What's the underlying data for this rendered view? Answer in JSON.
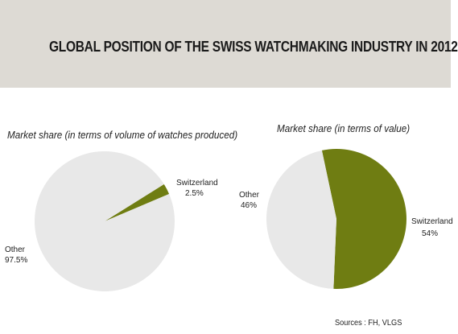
{
  "title": "GLOBAL POSITION OF THE SWISS WATCHMAKING INDUSTRY IN 2012",
  "source": "Sources : FH, VLGS",
  "colors": {
    "banner": "#dddad4",
    "switzerland": "#6f7d12",
    "other": "#e8e8e8"
  },
  "chart_data": [
    {
      "type": "pie",
      "title": "Market share (in terms of volume of watches produced)",
      "slices": [
        {
          "name": "Switzerland",
          "label": "2.5%",
          "value": 2.5,
          "color": "#6f7d12"
        },
        {
          "name": "Other",
          "label": "97.5%",
          "value": 97.5,
          "color": "#e8e8e8"
        }
      ]
    },
    {
      "type": "pie",
      "title": "Market share (in terms of value)",
      "slices": [
        {
          "name": "Switzerland",
          "label": "54%",
          "value": 54,
          "color": "#6f7d12"
        },
        {
          "name": "Other",
          "label": "46%",
          "value": 46,
          "color": "#e8e8e8"
        }
      ]
    }
  ]
}
